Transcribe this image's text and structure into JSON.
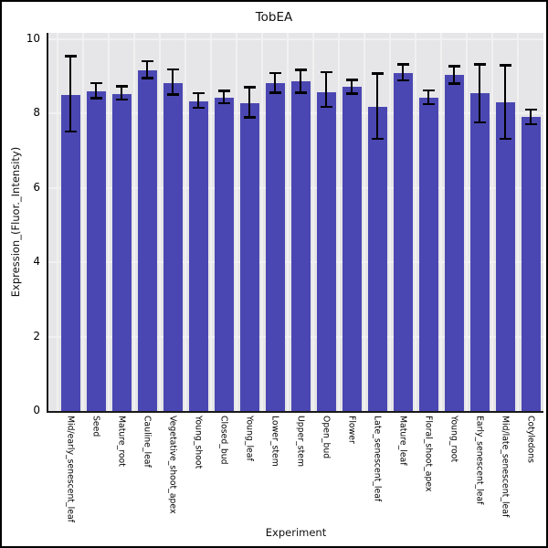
{
  "chart_data": {
    "type": "bar",
    "title": "TobEA",
    "xlabel": "Experiment",
    "ylabel": "Expression_(Fluor._Intensity)",
    "ylim": [
      0,
      10.16
    ],
    "yticks": [
      0,
      2,
      4,
      6,
      8,
      10
    ],
    "grid": true,
    "legend": false,
    "bar_color": "#4b47b2",
    "plot_background": "#e6e6e8",
    "gridline_color": "#f1f1f1",
    "error_bar_color": "#000000",
    "categories": [
      "Mid/early_senescent_leaf",
      "Seed",
      "Mature_root",
      "Cauline_leaf",
      "Vegetative_shoot_apex",
      "Young_shoot",
      "Closed_bud",
      "Young_leaf",
      "Lower_stem",
      "Upper_stem",
      "Open_bud",
      "Flower",
      "Late_senescent_leaf",
      "Mature_leaf",
      "Floral_shoot_apex",
      "Young_root",
      "Early_senescent_leaf",
      "Mid/late_senescent_leaf",
      "Cotyledons"
    ],
    "values": [
      8.5,
      8.59,
      8.51,
      9.15,
      8.82,
      8.33,
      8.42,
      8.26,
      8.8,
      8.87,
      8.56,
      8.71,
      8.17,
      9.09,
      8.43,
      9.02,
      8.53,
      8.29,
      7.9
    ],
    "error_low": [
      7.51,
      8.41,
      8.37,
      8.95,
      8.51,
      8.15,
      8.27,
      7.89,
      8.56,
      8.56,
      8.17,
      8.53,
      7.31,
      8.88,
      8.25,
      8.8,
      7.76,
      7.31,
      7.71
    ],
    "error_high": [
      9.53,
      8.81,
      8.73,
      9.4,
      9.18,
      8.54,
      8.6,
      8.7,
      9.08,
      9.16,
      9.11,
      8.9,
      9.07,
      9.32,
      8.61,
      9.27,
      9.31,
      9.29,
      8.1
    ]
  }
}
